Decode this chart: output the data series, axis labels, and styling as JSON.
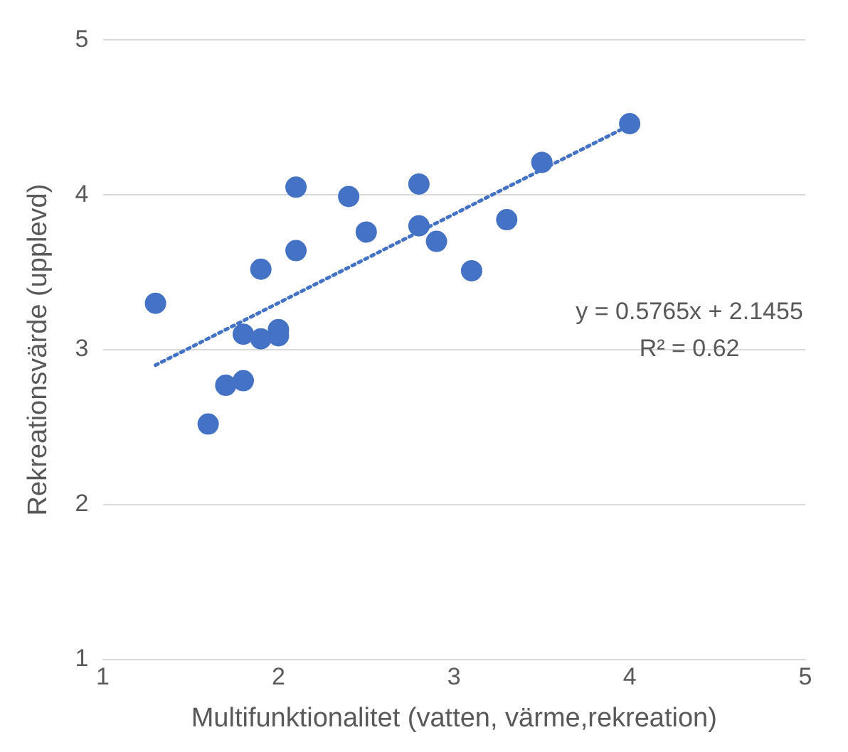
{
  "chart_data": {
    "type": "scatter",
    "xlabel": "Multifunktionalitet (vatten, värme,rekreation)",
    "ylabel": "Rekreationsvärde (upplevd)",
    "series": [
      {
        "type": "scatter",
        "color": "#4472c4",
        "marker": "circle",
        "x": [
          1.3,
          1.6,
          1.7,
          1.8,
          1.8,
          1.9,
          1.9,
          2.0,
          2.0,
          2.1,
          2.1,
          2.4,
          2.5,
          2.8,
          2.8,
          2.9,
          3.1,
          3.3,
          3.5,
          4.0
        ],
        "values": [
          3.3,
          2.52,
          2.77,
          2.8,
          3.1,
          3.52,
          3.07,
          3.13,
          3.09,
          4.05,
          3.64,
          3.99,
          3.76,
          4.07,
          3.8,
          3.7,
          3.51,
          3.84,
          4.21,
          4.46
        ]
      },
      {
        "type": "line",
        "color": "#4472c4",
        "line_style": "dotted",
        "marker": "none",
        "x": [
          1.3,
          4.0
        ],
        "values": [
          2.9,
          4.45
        ]
      }
    ],
    "xlim": [
      1,
      5
    ],
    "xticks": [
      1,
      2,
      3,
      4,
      5
    ],
    "ylim": [
      1,
      5
    ],
    "yticks": [
      1,
      2,
      3,
      4,
      5
    ],
    "grid": "y",
    "legend": false,
    "annotations": [
      "y = 0.5765x + 2.1455",
      "R² = 0.62"
    ]
  }
}
